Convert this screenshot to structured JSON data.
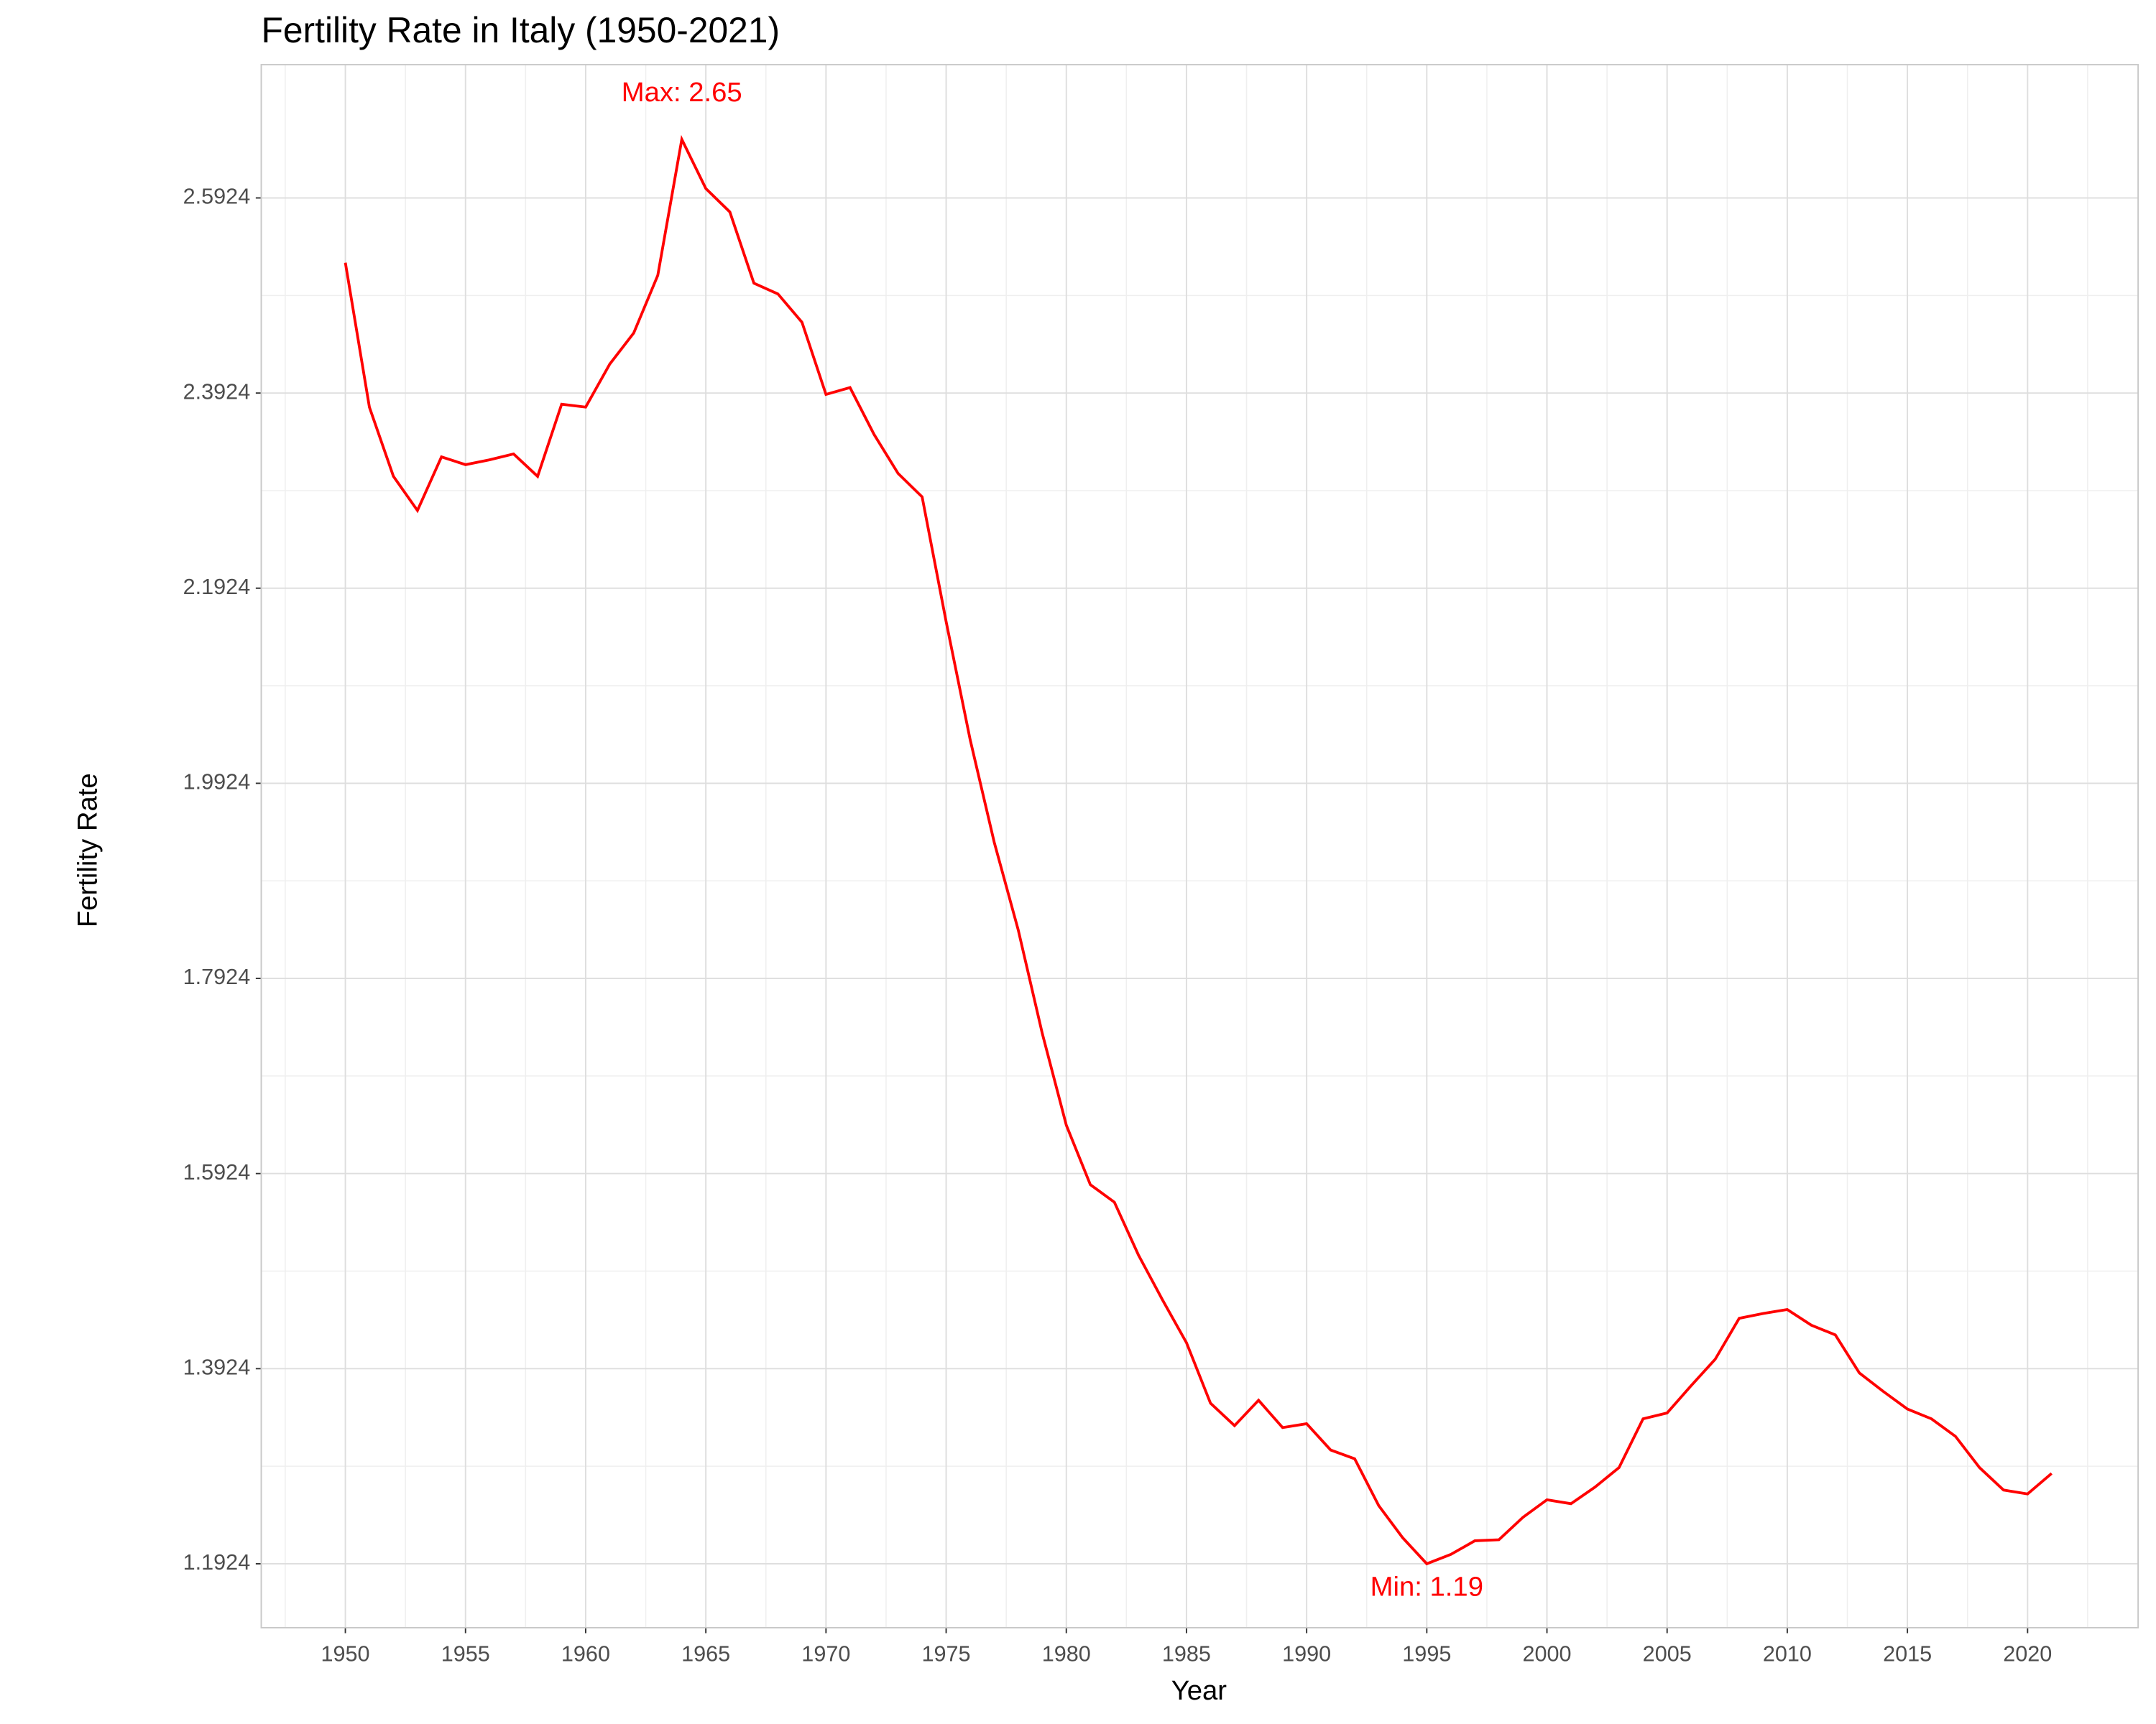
{
  "chart_data": {
    "type": "line",
    "title": "Fertility Rate in Italy (1950-2021)",
    "x_label": "Year",
    "y_label": "Fertility Rate",
    "x": [
      1950,
      1951,
      1952,
      1953,
      1954,
      1955,
      1956,
      1957,
      1958,
      1959,
      1960,
      1961,
      1962,
      1963,
      1964,
      1965,
      1966,
      1967,
      1968,
      1969,
      1970,
      1971,
      1972,
      1973,
      1974,
      1975,
      1976,
      1977,
      1978,
      1979,
      1980,
      1981,
      1982,
      1983,
      1984,
      1985,
      1986,
      1987,
      1988,
      1989,
      1990,
      1991,
      1992,
      1993,
      1994,
      1995,
      1996,
      1997,
      1998,
      1999,
      2000,
      2001,
      2002,
      2003,
      2004,
      2005,
      2006,
      2007,
      2008,
      2009,
      2010,
      2011,
      2012,
      2013,
      2014,
      2015,
      2016,
      2017,
      2018,
      2019,
      2020,
      2021
    ],
    "series": [
      {
        "name": "Fertility Rate",
        "color": "#ff0000",
        "values": [
          2.526,
          2.378,
          2.307,
          2.272,
          2.327,
          2.319,
          2.324,
          2.33,
          2.307,
          2.381,
          2.378,
          2.422,
          2.454,
          2.513,
          2.6524,
          2.602,
          2.578,
          2.505,
          2.494,
          2.465,
          2.391,
          2.398,
          2.35,
          2.31,
          2.286,
          2.158,
          2.037,
          1.932,
          1.842,
          1.736,
          1.642,
          1.581,
          1.563,
          1.509,
          1.463,
          1.419,
          1.357,
          1.334,
          1.36,
          1.332,
          1.336,
          1.309,
          1.3,
          1.252,
          1.219,
          1.1924,
          1.202,
          1.216,
          1.217,
          1.24,
          1.258,
          1.254,
          1.271,
          1.291,
          1.341,
          1.347,
          1.375,
          1.402,
          1.444,
          1.449,
          1.453,
          1.437,
          1.427,
          1.388,
          1.369,
          1.351,
          1.341,
          1.323,
          1.291,
          1.268,
          1.264,
          1.285
        ]
      }
    ],
    "annotations": [
      {
        "text": "Max: 2.65",
        "x": 1964,
        "y": 2.6524,
        "position": "above"
      },
      {
        "text": "Min: 1.19",
        "x": 1995,
        "y": 1.1924,
        "position": "below"
      }
    ],
    "xlim": [
      1946.5,
      2024.6
    ],
    "ylim": [
      1.1269,
      2.729
    ],
    "xticks": [
      1950,
      1955,
      1960,
      1965,
      1970,
      1975,
      1980,
      1985,
      1990,
      1995,
      2000,
      2005,
      2010,
      2015,
      2020
    ],
    "yticks": [
      1.1924,
      1.3924,
      1.5924,
      1.7924,
      1.9924,
      2.1924,
      2.3924,
      2.5924
    ],
    "grid": true
  }
}
